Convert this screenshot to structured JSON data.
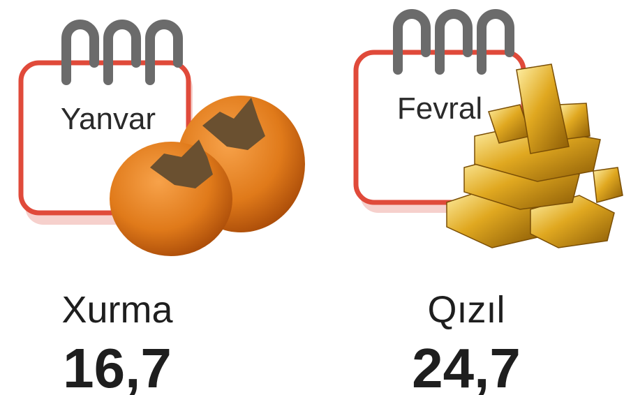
{
  "items": [
    {
      "month": "Yanvar",
      "name": "Xurma",
      "value": "16,7"
    },
    {
      "month": "Fevral",
      "name": "Qızıl",
      "value": "24,7"
    }
  ]
}
